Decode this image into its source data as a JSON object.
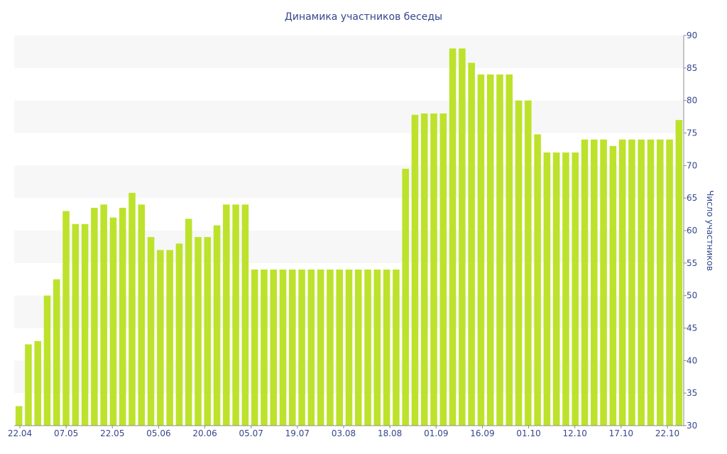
{
  "colors": {
    "bar": "#bde22b",
    "text": "#34478c",
    "band": "#f7f7f7",
    "axis": "#8c8c8c"
  },
  "chart_data": {
    "type": "bar",
    "title": "Динамика участников беседы",
    "ylabel": "Число участников",
    "xlabel": "",
    "ylim": [
      30,
      90
    ],
    "y_ticks": [
      30,
      35,
      40,
      45,
      50,
      55,
      60,
      65,
      70,
      75,
      80,
      85,
      90
    ],
    "y_axis_side": "right",
    "grid": "alternating horizontal bands",
    "x_tick_labels": [
      "22.04",
      "07.05",
      "22.05",
      "05.06",
      "20.06",
      "05.07",
      "19.07",
      "03.08",
      "18.08",
      "01.09",
      "16.09",
      "01.10",
      "12.10",
      "17.10",
      "22.10"
    ],
    "values": [
      33,
      42.5,
      43,
      50,
      52.5,
      63,
      61,
      61,
      63.5,
      64,
      62,
      63.5,
      65.8,
      64,
      59,
      57,
      57,
      58,
      61.8,
      59,
      59,
      60.8,
      64,
      64,
      64,
      54,
      54,
      54,
      54,
      54,
      54,
      54,
      54,
      54,
      54,
      54,
      54,
      54,
      54,
      54,
      54,
      69.5,
      77.8,
      78,
      78,
      78,
      88,
      88,
      85.8,
      84,
      84,
      84,
      84,
      80,
      80,
      74.8,
      72,
      72,
      72,
      72,
      74,
      74,
      74,
      73,
      74,
      74,
      74,
      74,
      74,
      74,
      77
    ]
  }
}
